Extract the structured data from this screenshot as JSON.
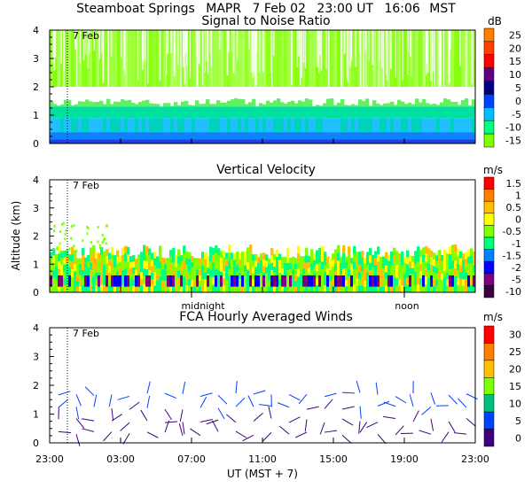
{
  "header": {
    "station": "Steamboat Springs",
    "instrument": "MAPR",
    "date": "7 Feb 02",
    "ut_time": "23:00 UT",
    "mst_time": "16:06",
    "mst_label": "MST"
  },
  "chart_data": [
    {
      "type": "heatmap",
      "title": "Signal to Noise Ratio",
      "date_marker": "7 Feb",
      "units": "dB",
      "ylim": [
        0,
        4
      ],
      "yticks": [
        "0",
        "1",
        "2",
        "3",
        "4"
      ],
      "colorbar_labels": [
        "25",
        "20",
        "15",
        "10",
        "5",
        "0",
        "-5",
        "-10",
        "-15"
      ],
      "colorbar_colors": [
        "#ff7f00",
        "#ff4000",
        "#ff0000",
        "#60007f",
        "#00007f",
        "#0040ff",
        "#00bfff",
        "#00ff7f",
        "#7fff00"
      ]
    },
    {
      "type": "heatmap",
      "title": "Vertical Velocity",
      "date_marker": "7 Feb",
      "units": "m/s",
      "ylabel": "Altitude (km)",
      "ylim": [
        0,
        4
      ],
      "yticks": [
        "0",
        "1",
        "2",
        "3",
        "4"
      ],
      "colorbar_labels": [
        "1.5",
        "1",
        "0.5",
        "0",
        "-0.5",
        "-1",
        "-1.5",
        "-2",
        "-5",
        "-10"
      ],
      "colorbar_colors": [
        "#ff0000",
        "#ff7f00",
        "#ffbf00",
        "#ffff00",
        "#7fff00",
        "#00ff7f",
        "#0080ff",
        "#0000ff",
        "#7f007f",
        "#3f003f"
      ],
      "midnight_label": "midnight",
      "noon_label": "noon"
    },
    {
      "type": "barbs",
      "title": "FCA Hourly Averaged Winds",
      "date_marker": "7 Feb",
      "units": "m/s",
      "ylim": [
        0,
        4
      ],
      "yticks": [
        "0",
        "1",
        "2",
        "3",
        "4"
      ],
      "colorbar_labels": [
        "30",
        "25",
        "20",
        "15",
        "10",
        "5",
        "0"
      ],
      "colorbar_colors": [
        "#ff0000",
        "#ff7f00",
        "#ffbf00",
        "#7fff00",
        "#00bf7f",
        "#0040ff",
        "#3f007f"
      ]
    }
  ],
  "x_axis": {
    "ticks": [
      "23:00",
      "03:00",
      "07:00",
      "11:00",
      "15:00",
      "19:00",
      "23:00"
    ],
    "xlim_hours": [
      0,
      24
    ],
    "date_marker_hour": 1.0,
    "midnight_hour": 8.0,
    "noon_hour": 20.0,
    "label": "UT  (MST + 7)"
  }
}
